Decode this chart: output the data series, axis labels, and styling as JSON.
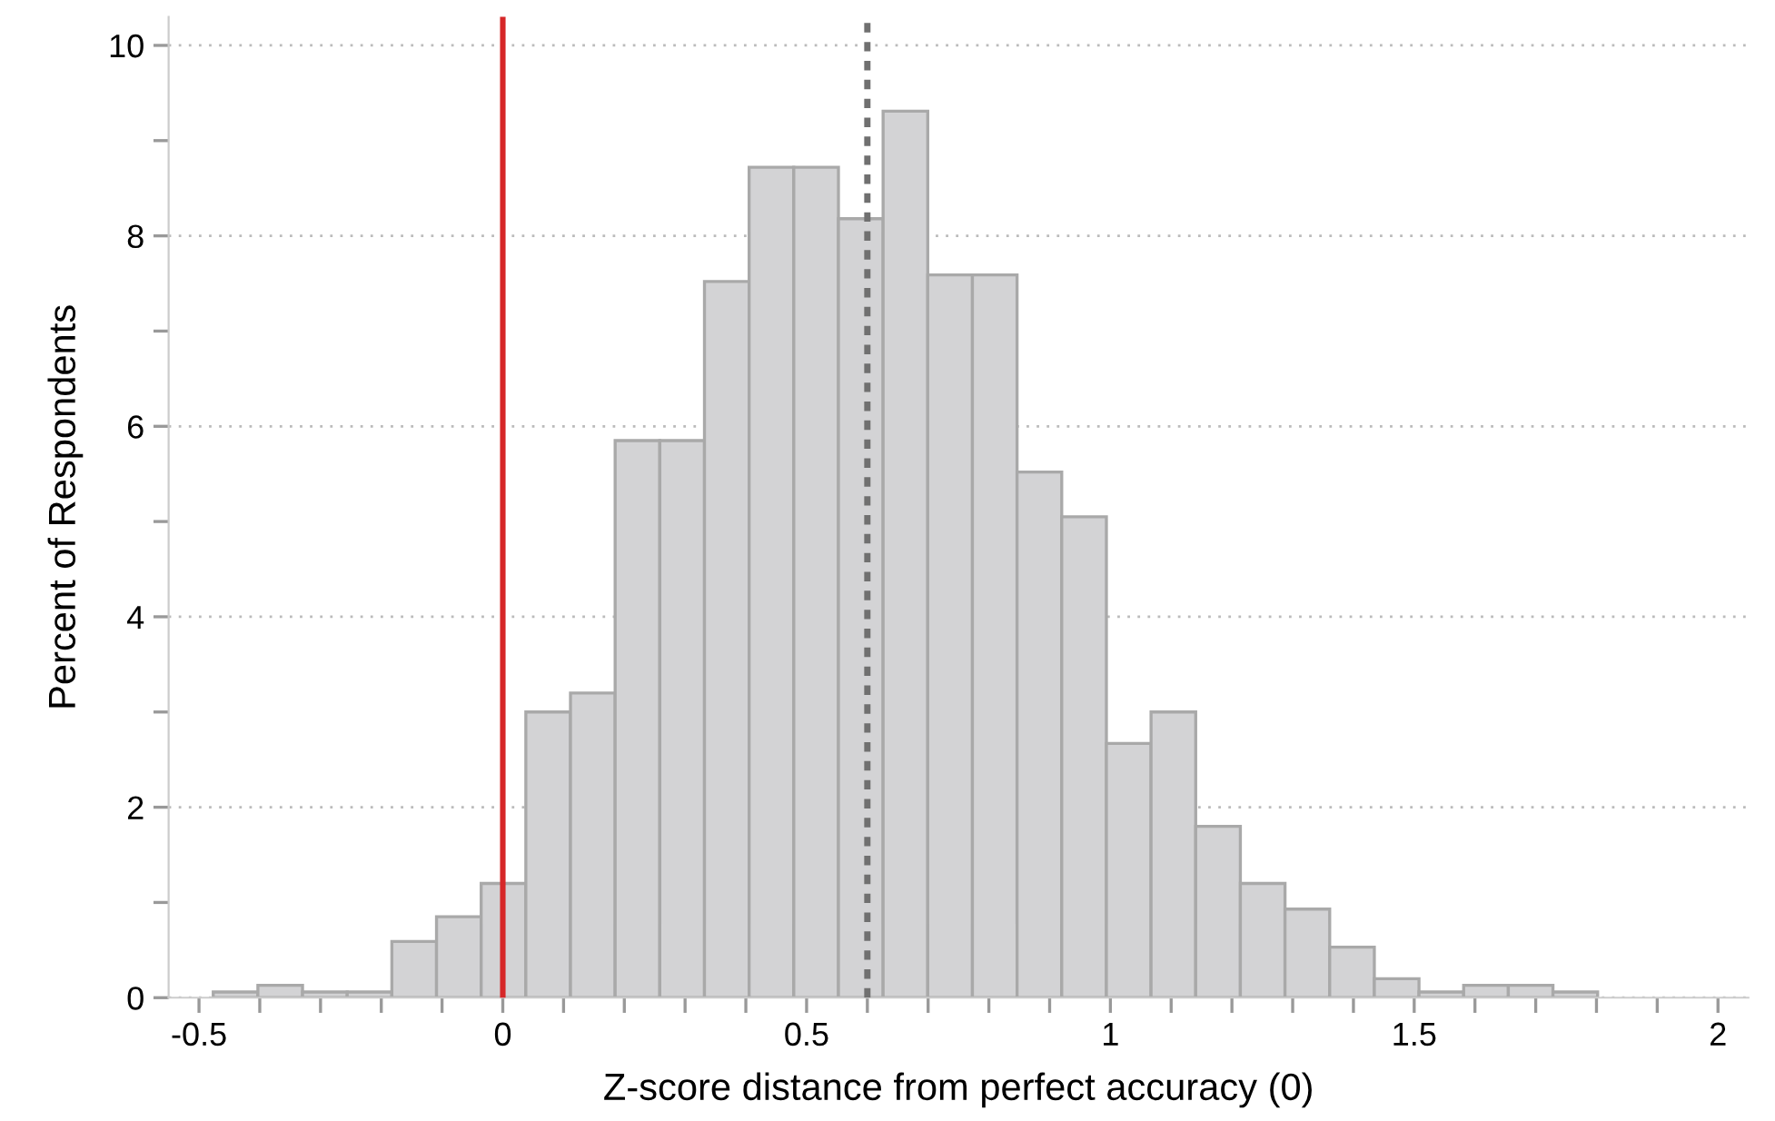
{
  "chart_data": {
    "type": "histogram",
    "xlabel": "Z-score distance from perfect accuracy (0)",
    "ylabel": "Percent of Respondents",
    "bins": [
      -0.4766,
      -0.4031,
      -0.3296,
      -0.2561,
      -0.1826,
      -0.1091,
      -0.0356,
      0.0379,
      0.1114,
      0.1849,
      0.2584,
      0.3319,
      0.4054,
      0.4789,
      0.5524,
      0.6259,
      0.6994,
      0.7729,
      0.8464,
      0.9199,
      0.9934,
      1.0669,
      1.1404,
      1.2139,
      1.2874,
      1.3609,
      1.4344,
      1.5079,
      1.5814,
      1.6549,
      1.7284,
      1.8019
    ],
    "values": [
      0.06,
      0.13,
      0.06,
      0.06,
      0.59,
      0.85,
      1.2,
      3.0,
      3.2,
      5.85,
      5.85,
      7.52,
      8.72,
      8.72,
      8.18,
      9.31,
      7.59,
      7.59,
      5.52,
      5.05,
      2.67,
      3.0,
      1.8,
      1.2,
      0.93,
      0.53,
      0.2,
      0.06,
      0.13,
      0.13,
      0.06
    ],
    "color": "#d3d3d5",
    "xlim": [
      -0.55,
      2.05
    ],
    "ylim": [
      0,
      10.3
    ],
    "xticks": [
      -0.5,
      {
        "value": -0.4,
        "label": null
      },
      {
        "value": -0.3,
        "label": null
      },
      {
        "value": -0.2,
        "label": null
      },
      {
        "value": -0.1,
        "label": null
      },
      0,
      {
        "value": 0.1,
        "label": null
      },
      {
        "value": 0.2,
        "label": null
      },
      {
        "value": 0.3,
        "label": null
      },
      {
        "value": 0.4,
        "label": null
      },
      0.5,
      {
        "value": 0.6,
        "label": null
      },
      {
        "value": 0.7,
        "label": null
      },
      {
        "value": 0.8,
        "label": null
      },
      {
        "value": 0.9,
        "label": null
      },
      1,
      {
        "value": 1.1,
        "label": null
      },
      {
        "value": 1.2,
        "label": null
      },
      {
        "value": 1.3,
        "label": null
      },
      {
        "value": 1.4,
        "label": null
      },
      1.5,
      {
        "value": 1.6,
        "label": null
      },
      {
        "value": 1.7,
        "label": null
      },
      {
        "value": 1.8,
        "label": null
      },
      {
        "value": 1.9,
        "label": null
      },
      2
    ],
    "yticks": [
      0,
      {
        "value": 1,
        "label": null
      },
      2,
      {
        "value": 3,
        "label": null
      },
      4,
      {
        "value": 5,
        "label": null
      },
      6,
      {
        "value": 7,
        "label": null
      },
      8,
      {
        "value": 9,
        "label": null
      },
      10
    ],
    "grid": "y",
    "ref_lines": [
      {
        "axis": "x",
        "value": 0,
        "color": "#d62728",
        "line_style": "solid"
      },
      {
        "axis": "x",
        "value": 0.6,
        "color": "#707070",
        "line_style": "dotted"
      }
    ]
  }
}
